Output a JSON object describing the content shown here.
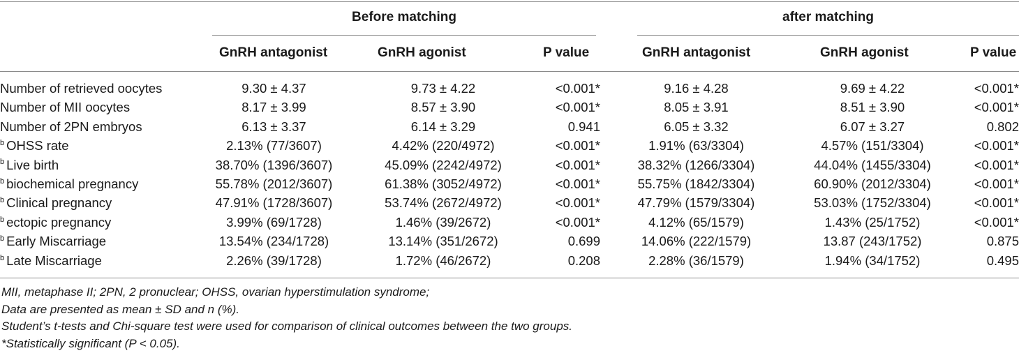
{
  "table": {
    "group_headers": [
      "Before matching",
      "after matching"
    ],
    "column_headers": [
      "GnRH antagonist",
      "GnRH agonist",
      "P value",
      "GnRH antagonist",
      "GnRH agonist",
      "P value"
    ],
    "rows": [
      {
        "sup": "",
        "label": "Number of retrieved oocytes",
        "cells": [
          "9.30 ± 4.37",
          "9.73 ± 4.22",
          "<0.001*",
          "9.16 ± 4.28",
          "9.69 ± 4.22",
          "<0.001*"
        ]
      },
      {
        "sup": "",
        "label": "Number of MII oocytes",
        "cells": [
          "8.17 ± 3.99",
          "8.57 ± 3.90",
          "<0.001*",
          "8.05 ± 3.91",
          "8.51 ± 3.90",
          "<0.001*"
        ]
      },
      {
        "sup": "",
        "label": "Number of 2PN embryos",
        "cells": [
          "6.13 ± 3.37",
          "6.14 ± 3.29",
          "0.941",
          "6.05 ± 3.32",
          "6.07 ± 3.27",
          "0.802"
        ]
      },
      {
        "sup": "b",
        "label": "OHSS rate",
        "cells": [
          "2.13% (77/3607)",
          "4.42% (220/4972)",
          "<0.001*",
          "1.91% (63/3304)",
          "4.57% (151/3304)",
          "<0.001*"
        ]
      },
      {
        "sup": "b",
        "label": "Live birth",
        "cells": [
          "38.70% (1396/3607)",
          "45.09% (2242/4972)",
          "<0.001*",
          "38.32% (1266/3304)",
          "44.04% (1455/3304)",
          "<0.001*"
        ]
      },
      {
        "sup": "b",
        "label": "biochemical pregnancy",
        "cells": [
          "55.78% (2012/3607)",
          "61.38% (3052/4972)",
          "<0.001*",
          "55.75% (1842/3304)",
          "60.90% (2012/3304)",
          "<0.001*"
        ]
      },
      {
        "sup": "b",
        "label": "Clinical pregnancy",
        "cells": [
          "47.91% (1728/3607)",
          "53.74% (2672/4972)",
          "<0.001*",
          "47.79% (1579/3304)",
          "53.03% (1752/3304)",
          "<0.001*"
        ]
      },
      {
        "sup": "b",
        "label": "ectopic pregnancy",
        "cells": [
          "3.99% (69/1728)",
          "1.46% (39/2672)",
          "<0.001*",
          "4.12% (65/1579)",
          "1.43% (25/1752)",
          "<0.001*"
        ]
      },
      {
        "sup": "b",
        "label": "Early Miscarriage",
        "cells": [
          "13.54% (234/1728)",
          "13.14% (351/2672)",
          "0.699",
          "14.06% (222/1579)",
          "13.87 (243/1752)",
          "0.875"
        ]
      },
      {
        "sup": "b",
        "label": "Late Miscarriage",
        "cells": [
          "2.26% (39/1728)",
          "1.72% (46/2672)",
          "0.208",
          "2.28% (36/1579)",
          "1.94% (34/1752)",
          "0.495"
        ]
      }
    ]
  },
  "footnotes": [
    "MII, metaphase II; 2PN, 2 pronuclear; OHSS, ovarian hyperstimulation syndrome;",
    "Data are presented as mean ± SD and n (%).",
    "Student’s t-tests and Chi-square test were used for comparison of clinical outcomes between the two groups.",
    "*Statistically significant (P < 0.05)."
  ]
}
